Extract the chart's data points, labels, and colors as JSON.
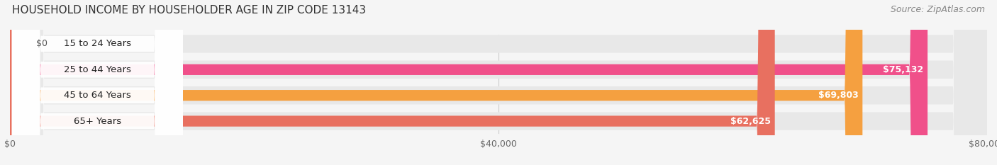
{
  "title": "HOUSEHOLD INCOME BY HOUSEHOLDER AGE IN ZIP CODE 13143",
  "source": "Source: ZipAtlas.com",
  "categories": [
    "15 to 24 Years",
    "25 to 44 Years",
    "45 to 64 Years",
    "65+ Years"
  ],
  "values": [
    0,
    75132,
    69803,
    62625
  ],
  "bar_colors": [
    "#b0b0e0",
    "#f0508a",
    "#f5a040",
    "#e87060"
  ],
  "bar_bg_color": "#e8e8e8",
  "label_bg_color": "#ffffff",
  "value_labels": [
    "$0",
    "$75,132",
    "$69,803",
    "$62,625"
  ],
  "xlim": [
    0,
    80000
  ],
  "xticks": [
    0,
    40000,
    80000
  ],
  "xtick_labels": [
    "$0",
    "$40,000",
    "$80,000"
  ],
  "background_color": "#f5f5f5",
  "title_fontsize": 11,
  "source_fontsize": 9,
  "label_fontsize": 9.5,
  "value_fontsize": 9,
  "tick_fontsize": 9,
  "grid_color": "#cccccc"
}
